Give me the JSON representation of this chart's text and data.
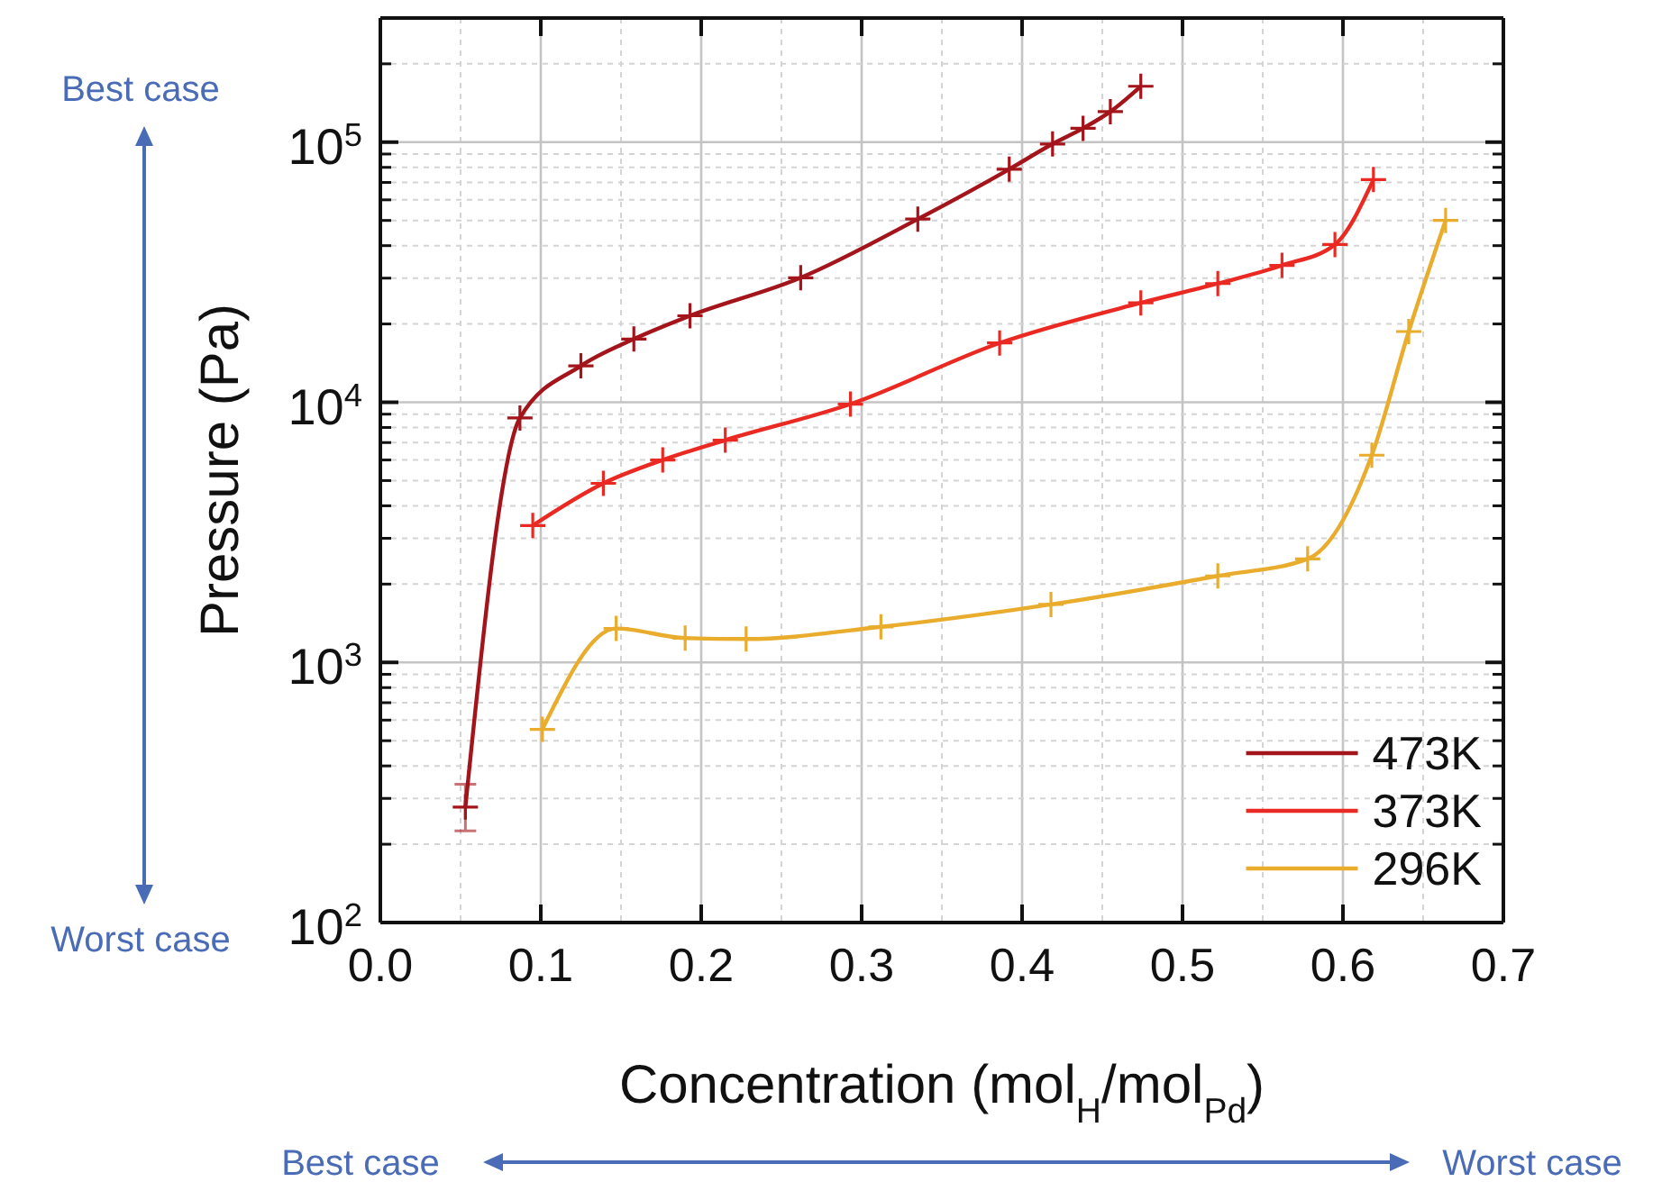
{
  "chart_data": {
    "type": "line",
    "xlabel": "Concentration (mol$_{H}$/mol$_{Pd}$)",
    "ylabel": "Pressure (Pa)",
    "xlim": [
      0,
      0.7
    ],
    "xticks": [
      {
        "value": 0,
        "label": "0.0"
      },
      {
        "value": 0.1,
        "label": "0.1"
      },
      {
        "value": 0.2,
        "label": "0.2"
      },
      {
        "value": 0.3,
        "label": "0.3"
      },
      {
        "value": 0.4,
        "label": "0.4"
      },
      {
        "value": 0.5,
        "label": "0.5"
      },
      {
        "value": 0.6,
        "label": "0.6"
      },
      {
        "value": 0.7,
        "label": "0.7"
      }
    ],
    "ylim": [
      100,
      300000
    ],
    "yticks": [
      {
        "value": 100,
        "label": "10$^{2}$"
      },
      {
        "value": 1000,
        "label": "10$^{3}$"
      },
      {
        "value": 10000,
        "label": "10$^{4}$"
      },
      {
        "value": 100000,
        "label": "10$^{5}$"
      }
    ],
    "log": true,
    "grid": true,
    "legend": "bottom right",
    "marker": "cross",
    "series": [
      {
        "name": "473K",
        "color": "#a3141b",
        "x": [
          0.053,
          0.087,
          0.125,
          0.158,
          0.193,
          0.262,
          0.335,
          0.392,
          0.419,
          0.438,
          0.455,
          0.474
        ],
        "values": [
          278,
          8700,
          13800,
          17500,
          21500,
          30100,
          50600,
          78700,
          98400,
          113000,
          131000,
          164000
        ],
        "errors": [
          [
            225,
            340
          ],
          null,
          null,
          null,
          null,
          null,
          null,
          null,
          null,
          null,
          null,
          null
        ]
      },
      {
        "name": "373K",
        "color": "#ea2a22",
        "x": [
          0.095,
          0.139,
          0.176,
          0.215,
          0.293,
          0.386,
          0.474,
          0.522,
          0.562,
          0.595,
          0.619
        ],
        "values": [
          3360,
          4880,
          6000,
          7150,
          9840,
          16900,
          24100,
          28600,
          33600,
          40400,
          71800
        ]
      },
      {
        "name": "296K",
        "color": "#e9ac2c",
        "x": [
          0.101,
          0.147,
          0.19,
          0.228,
          0.312,
          0.418,
          0.522,
          0.578,
          0.618,
          0.641,
          0.664
        ],
        "values": [
          553,
          1350,
          1240,
          1230,
          1370,
          1670,
          2150,
          2500,
          6260,
          18700,
          50000
        ]
      }
    ],
    "annotations": [
      "Best case",
      "Worst case",
      "Best case",
      "Worst case"
    ]
  }
}
